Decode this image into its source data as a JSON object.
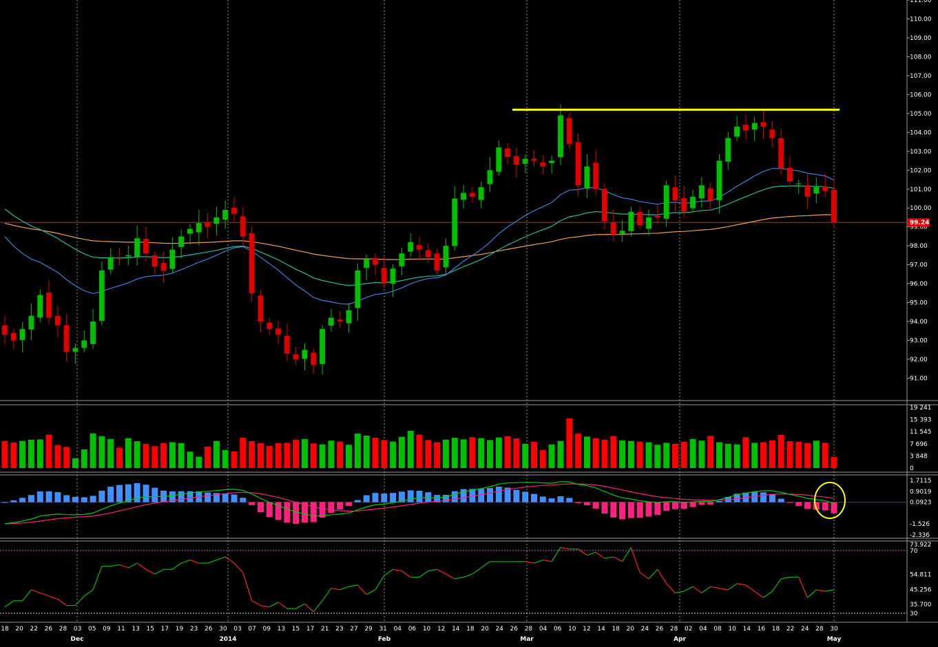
{
  "chart_data": [
    {
      "type": "candlestick",
      "panel": "price",
      "ylim": [
        90,
        111
      ],
      "y_ticks": [
        "111.00",
        "110.00",
        "109.00",
        "108.00",
        "107.00",
        "106.00",
        "105.00",
        "104.00",
        "103.00",
        "102.00",
        "101.00",
        "100.00",
        "99.00",
        "98.00",
        "97.00",
        "96.00",
        "95.00",
        "94.00",
        "93.00",
        "92.00",
        "91.00"
      ],
      "last_price_label": "99.24",
      "last_price": 99.24,
      "resistance_level": 105.2,
      "overlays": [
        "moving-average-blue",
        "moving-average-green",
        "moving-average-orange",
        "horizontal-line-red"
      ],
      "colors": {
        "up": "#00c000",
        "down": "#e00000",
        "resistance": "#ffff00",
        "ma_short": "#3f7fe0",
        "ma_mid": "#20c0a0",
        "ma_long": "#f0a050",
        "last_line": "#c03030"
      },
      "close_path": [
        93.3,
        93.0,
        93.6,
        94.3,
        95.4,
        94.2,
        93.8,
        92.4,
        92.6,
        93.0,
        94.0,
        96.7,
        97.4,
        97.3,
        97.5,
        98.4,
        97.6,
        96.9,
        96.7,
        97.8,
        98.5,
        98.9,
        99.2,
        99.0,
        99.5,
        99.9,
        99.7,
        98.5,
        95.5,
        94.0,
        93.6,
        93.3,
        92.3,
        92.0,
        92.5,
        91.7,
        93.6,
        94.2,
        94.0,
        94.6,
        96.7,
        97.3,
        97.0,
        96.0,
        96.8,
        97.6,
        98.2,
        97.8,
        97.4,
        96.7,
        98.0,
        100.5,
        100.8,
        100.6,
        101.1,
        102.0,
        103.2,
        102.7,
        102.3,
        102.6,
        102.5,
        102.2,
        102.5,
        104.9,
        103.4,
        101.2,
        102.2,
        101.0,
        99.3,
        98.6,
        98.8,
        99.8,
        99.1,
        99.5,
        99.5,
        101.2,
        100.4,
        99.8,
        100.6,
        101.2,
        100.4,
        102.5,
        103.7,
        104.3,
        104.1,
        104.5,
        104.3,
        103.7,
        102.1,
        101.4,
        101.3,
        100.6,
        101.1,
        100.9,
        99.24
      ]
    },
    {
      "type": "bar",
      "panel": "volume",
      "y_ticks": [
        "19 241",
        "15 393",
        "11 545",
        "7 696",
        "3 848",
        "0"
      ],
      "values": [
        8600,
        8100,
        8600,
        9000,
        9100,
        10600,
        7300,
        6700,
        3100,
        5900,
        11000,
        10100,
        9200,
        6500,
        9500,
        8500,
        7700,
        6900,
        7900,
        8200,
        7900,
        5200,
        3600,
        6800,
        8600,
        5700,
        5300,
        9600,
        8500,
        7900,
        7000,
        7900,
        8000,
        9000,
        9200,
        7800,
        7500,
        8700,
        8400,
        7400,
        10900,
        10300,
        9600,
        8900,
        8400,
        9900,
        11800,
        10600,
        8900,
        8200,
        9000,
        9600,
        9100,
        9800,
        9500,
        8900,
        9700,
        10100,
        9400,
        7700,
        8300,
        5700,
        7500,
        8600,
        15800,
        10900,
        10000,
        9500,
        9000,
        10100,
        8800,
        8600,
        8400,
        8200,
        7400,
        8000,
        7700,
        8300,
        9200,
        8700,
        10200,
        8200,
        7700,
        7500,
        9800,
        8000,
        8200,
        8800,
        10500,
        8500,
        8300,
        7900,
        8700,
        8000,
        3500
      ],
      "colors": {
        "up": "#00c000",
        "down": "#ff0000"
      }
    },
    {
      "type": "line",
      "panel": "macd",
      "y_ticks": [
        "1.7115",
        "0.9019",
        "0.0923",
        "-1.526",
        "-2.336"
      ],
      "series_colors": {
        "macd": "#00d000",
        "signal": "#ff2080",
        "histogram_positive": "#4090ff",
        "histogram_negative": "#ff2080"
      }
    },
    {
      "type": "line",
      "panel": "oscillator",
      "y_ticks": [
        "73.922",
        "70",
        "54.811",
        "45.256",
        "35.700",
        "30"
      ],
      "upper_band": 70,
      "lower_band": 30,
      "colors": {
        "rising": "#00c000",
        "falling": "#ff2020",
        "bands": "#ff40ff"
      },
      "values": [
        34,
        38,
        38,
        45,
        43,
        41,
        39,
        35,
        35,
        41,
        45,
        60,
        60,
        61,
        59,
        62,
        58,
        55,
        58,
        58,
        62,
        64,
        62,
        62,
        64,
        66,
        62,
        56,
        38,
        35,
        34,
        37,
        33,
        33,
        36,
        31,
        38,
        46,
        45,
        47,
        48,
        42,
        45,
        54,
        58,
        57,
        53,
        53,
        57,
        58,
        55,
        52,
        53,
        55,
        59,
        63,
        63,
        63,
        63,
        63,
        62,
        64,
        63,
        72,
        71,
        71,
        67,
        69,
        65,
        66,
        63,
        72,
        56,
        52,
        58,
        49,
        43,
        44,
        47,
        43,
        47,
        46,
        45,
        49,
        48,
        44,
        40,
        44,
        52,
        53,
        53,
        40,
        45,
        44,
        45
      ]
    }
  ],
  "x_axis": {
    "day_labels": [
      "18",
      "20",
      "22",
      "26",
      "28",
      "03",
      "05",
      "09",
      "11",
      "13",
      "15",
      "17",
      "19",
      "23",
      "26",
      "30",
      "03",
      "07",
      "09",
      "13",
      "15",
      "17",
      "21",
      "23",
      "27",
      "29",
      "31",
      "04",
      "06",
      "10",
      "12",
      "14",
      "18",
      "20",
      "24",
      "26",
      "28",
      "04",
      "06",
      "10",
      "12",
      "14",
      "18",
      "20",
      "24",
      "26",
      "28",
      "02",
      "04",
      "08",
      "10",
      "14",
      "16",
      "18",
      "22",
      "24",
      "28",
      "30"
    ],
    "month_labels": [
      "Dec",
      "2014",
      "Feb",
      "Mar",
      "Apr",
      "May"
    ]
  }
}
